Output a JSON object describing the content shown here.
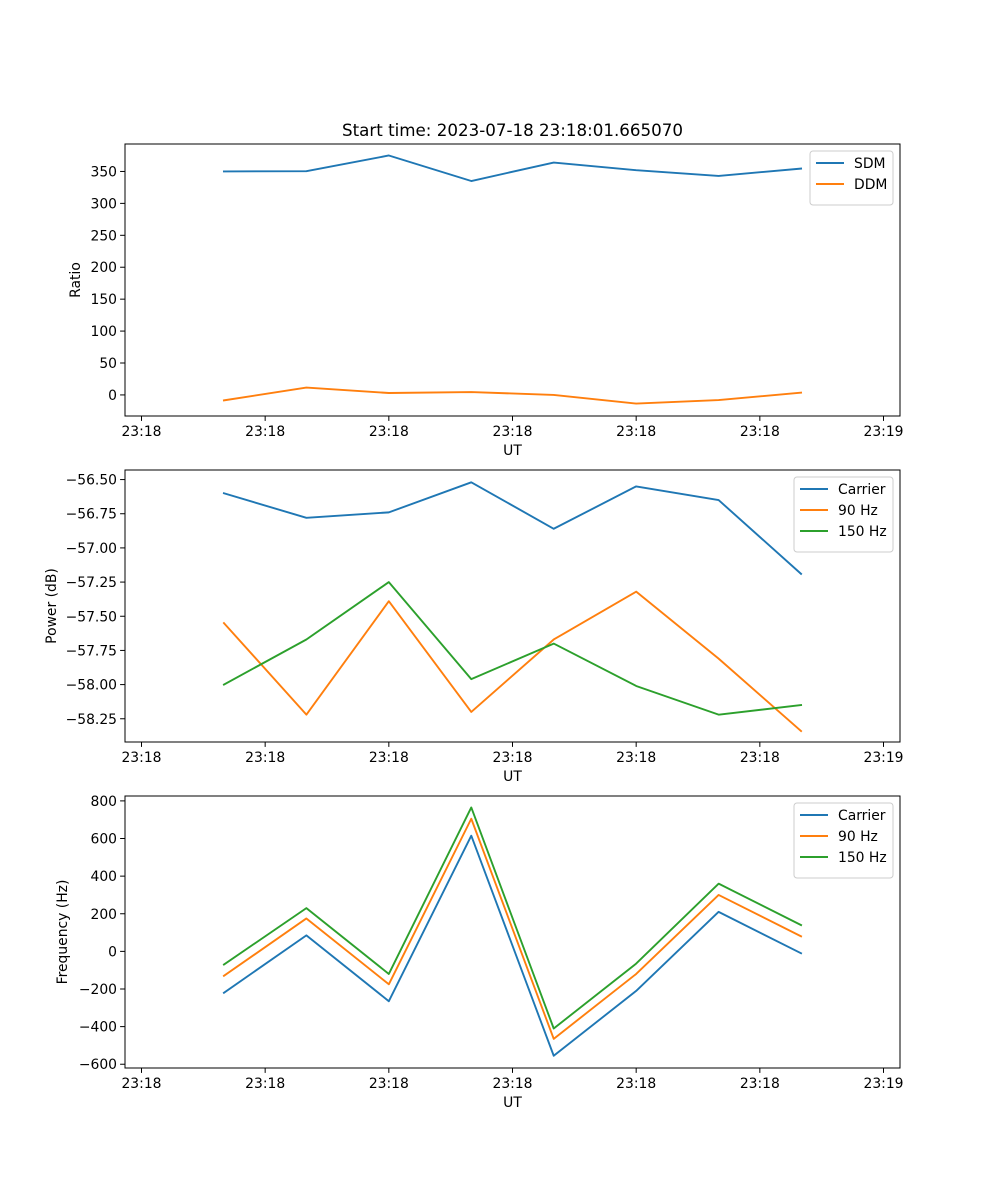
{
  "figure_title": "Start time: 2023-07-18 23:18:01.665070",
  "chart_data": [
    {
      "type": "line",
      "title": "Start time: 2023-07-18 23:18:01.665070",
      "xlabel": "UT",
      "ylabel": "Ratio",
      "x": [
        1,
        2,
        3,
        4,
        5,
        6,
        7,
        8
      ],
      "xlim": [
        -0.2,
        9.2
      ],
      "ylim": [
        -33,
        393
      ],
      "xticks": [
        0,
        1.5,
        3,
        4.5,
        6,
        7.5,
        9
      ],
      "xtick_labels": [
        "23:18",
        "23:18",
        "23:18",
        "23:18",
        "23:18",
        "23:18",
        "23:19"
      ],
      "yticks": [
        0,
        50,
        100,
        150,
        200,
        250,
        300,
        350
      ],
      "ytick_labels": [
        "0",
        "50",
        "100",
        "150",
        "200",
        "250",
        "300",
        "350"
      ],
      "legend_position": "top-right",
      "series": [
        {
          "name": "SDM",
          "color": "#1f77b4",
          "values": [
            350,
            350.5,
            375,
            335,
            364,
            352,
            343,
            354.5
          ]
        },
        {
          "name": "DDM",
          "color": "#ff7f0e",
          "values": [
            -8.5,
            11.5,
            3,
            4.5,
            0,
            -13.5,
            -8,
            3.5
          ]
        }
      ]
    },
    {
      "type": "line",
      "title": "",
      "xlabel": "UT",
      "ylabel": "Power (dB)",
      "x": [
        1,
        2,
        3,
        4,
        5,
        6,
        7,
        8
      ],
      "xlim": [
        -0.2,
        9.2
      ],
      "ylim": [
        -58.42,
        -56.43
      ],
      "xticks": [
        0,
        1.5,
        3,
        4.5,
        6,
        7.5,
        9
      ],
      "xtick_labels": [
        "23:18",
        "23:18",
        "23:18",
        "23:18",
        "23:18",
        "23:18",
        "23:19"
      ],
      "yticks": [
        -56.5,
        -56.75,
        -57.0,
        -57.25,
        -57.5,
        -57.75,
        -58.0,
        -58.25
      ],
      "ytick_labels": [
        "−56.50",
        "−56.75",
        "−57.00",
        "−57.25",
        "−57.50",
        "−57.75",
        "−58.00",
        "−58.25"
      ],
      "legend_position": "top-right",
      "series": [
        {
          "name": "Carrier",
          "color": "#1f77b4",
          "values": [
            -56.6,
            -56.78,
            -56.74,
            -56.52,
            -56.86,
            -56.55,
            -56.65,
            -57.19
          ]
        },
        {
          "name": "90 Hz",
          "color": "#ff7f0e",
          "values": [
            -57.55,
            -58.22,
            -57.39,
            -58.2,
            -57.67,
            -57.32,
            -57.81,
            -58.34
          ]
        },
        {
          "name": "150 Hz",
          "color": "#2ca02c",
          "values": [
            -58.0,
            -57.67,
            -57.25,
            -57.96,
            -57.7,
            -58.01,
            -58.22,
            -58.15
          ]
        }
      ]
    },
    {
      "type": "line",
      "title": "",
      "xlabel": "UT",
      "ylabel": "Frequency (Hz)",
      "x": [
        1,
        2,
        3,
        4,
        5,
        6,
        7,
        8
      ],
      "xlim": [
        -0.2,
        9.2
      ],
      "ylim": [
        -620,
        826
      ],
      "xticks": [
        0,
        1.5,
        3,
        4.5,
        6,
        7.5,
        9
      ],
      "xtick_labels": [
        "23:18",
        "23:18",
        "23:18",
        "23:18",
        "23:18",
        "23:18",
        "23:19"
      ],
      "yticks": [
        -600,
        -400,
        -200,
        0,
        200,
        400,
        600,
        800
      ],
      "ytick_labels": [
        "−600",
        "−400",
        "−200",
        "0",
        "200",
        "400",
        "600",
        "800"
      ],
      "legend_position": "top-right",
      "series": [
        {
          "name": "Carrier",
          "color": "#1f77b4",
          "values": [
            -220,
            85,
            -265,
            615,
            -555,
            -210,
            210,
            -10
          ]
        },
        {
          "name": "90 Hz",
          "color": "#ff7f0e",
          "values": [
            -130,
            175,
            -175,
            705,
            -465,
            -120,
            300,
            80
          ]
        },
        {
          "name": "150 Hz",
          "color": "#2ca02c",
          "values": [
            -70,
            230,
            -120,
            765,
            -410,
            -65,
            360,
            140
          ]
        }
      ]
    }
  ]
}
